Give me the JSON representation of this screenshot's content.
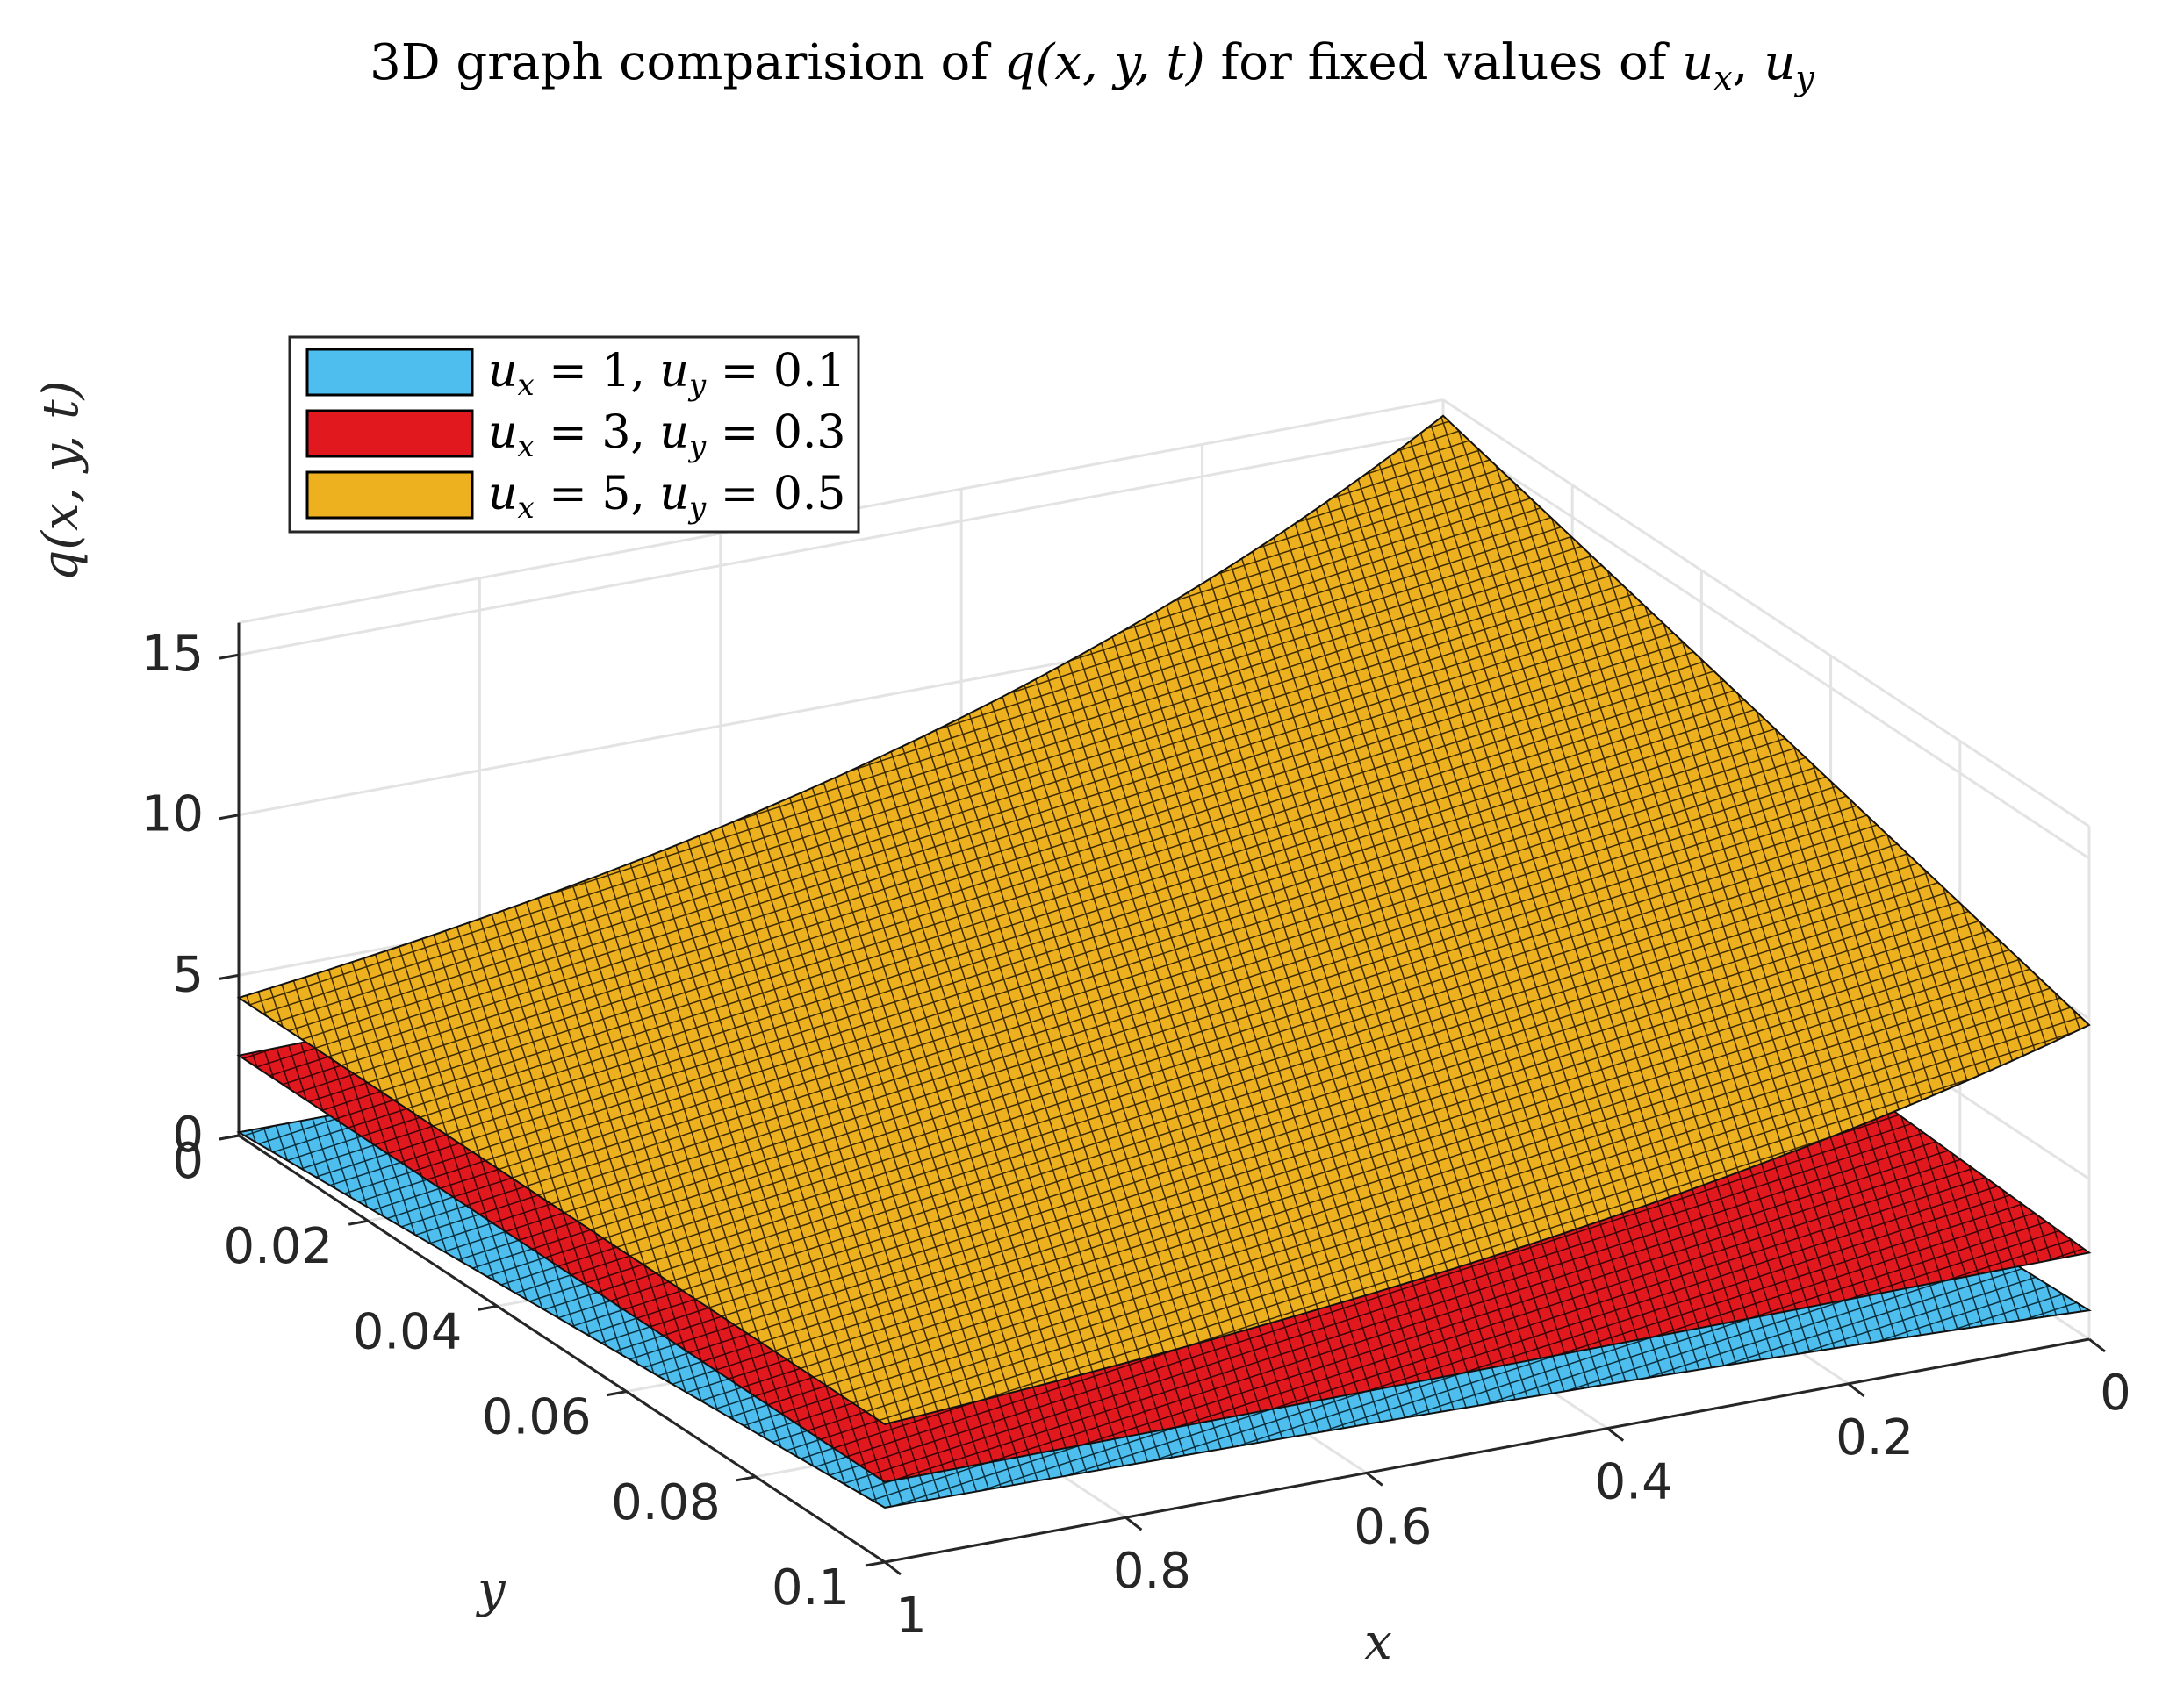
{
  "chart_data": {
    "type": "surface",
    "title": "3D graph comparision of q(x, y, t) for fixed values of u_x, u_y",
    "title_parts": {
      "prefix": "3D graph comparision of ",
      "q": "q(x, y, t)",
      "middle": " for fixed values of ",
      "u": "u",
      "sub_x": "x",
      "comma": ", ",
      "sub_y": "y"
    },
    "xlabel": "x",
    "ylabel": "y",
    "zlabel": "q(x, y, t)",
    "xlim": [
      0,
      1
    ],
    "ylim": [
      0,
      0.1
    ],
    "zlim": [
      0,
      16
    ],
    "x_ticks": [
      "0",
      "0.2",
      "0.4",
      "0.6",
      "0.8",
      "1"
    ],
    "y_ticks": [
      "0",
      "0.02",
      "0.04",
      "0.06",
      "0.08",
      "0.1"
    ],
    "z_ticks": [
      "0",
      "5",
      "10",
      "15"
    ],
    "grid": true,
    "legend_position": "top-left",
    "series": [
      {
        "label_parts": {
          "u": "u",
          "sx": "x",
          "eq1": " = 1, ",
          "sy": "y",
          "eq2": " = 0.1"
        },
        "color": "#4DBEEE",
        "corner_values": {
          "x0_y0": 0.1,
          "x1_y0": 0.1,
          "x1_y01": 1.7,
          "x0_y01": 0.9
        },
        "edge_values": {
          "x0_y01_peak": 1.1
        }
      },
      {
        "label_parts": {
          "u": "u",
          "sx": "x",
          "eq1": " = 3, ",
          "sy": "y",
          "eq2": " = 0.3"
        },
        "color": "#E1191F",
        "corner_values": {
          "x0_y0": 4.0,
          "x1_y0": 2.5,
          "x1_y01": 2.5,
          "x0_y01": 2.7
        }
      },
      {
        "label_parts": {
          "u": "u",
          "sx": "x",
          "eq1": " = 5, ",
          "sy": "y",
          "eq2": " = 0.5"
        },
        "color": "#EDB120",
        "corner_values": {
          "x0_y0": 15.5,
          "x1_y0": 4.3,
          "x1_y01": 4.3,
          "x0_y01": 9.8
        }
      }
    ]
  }
}
